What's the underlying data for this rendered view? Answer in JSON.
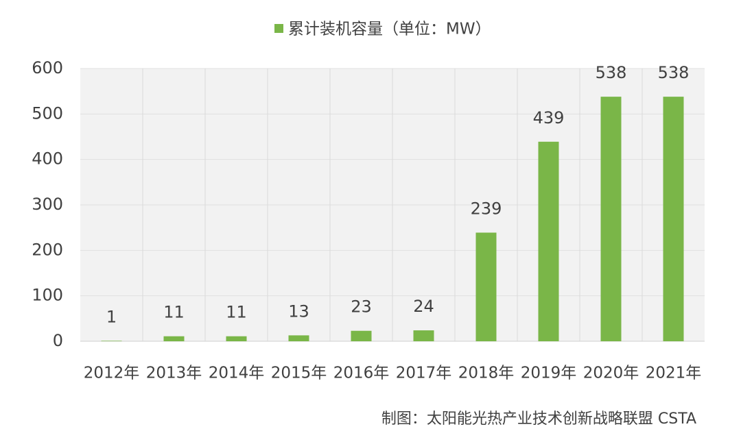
{
  "chart_data": {
    "type": "bar",
    "categories": [
      "2012年",
      "2013年",
      "2014年",
      "2015年",
      "2016年",
      "2017年",
      "2018年",
      "2019年",
      "2020年",
      "2021年"
    ],
    "series": [
      {
        "name": "累计装机容量（单位：MW）",
        "color": "#7ab648",
        "values": [
          1,
          11,
          11,
          13,
          23,
          24,
          239,
          439,
          538,
          538
        ]
      }
    ],
    "ylim": [
      0,
      600
    ],
    "yticks": [
      0,
      100,
      200,
      300,
      400,
      500,
      600
    ],
    "grid": true,
    "legend": "top",
    "source": "制图：太阳能光热产业技术创新战略联盟 CSTA"
  }
}
